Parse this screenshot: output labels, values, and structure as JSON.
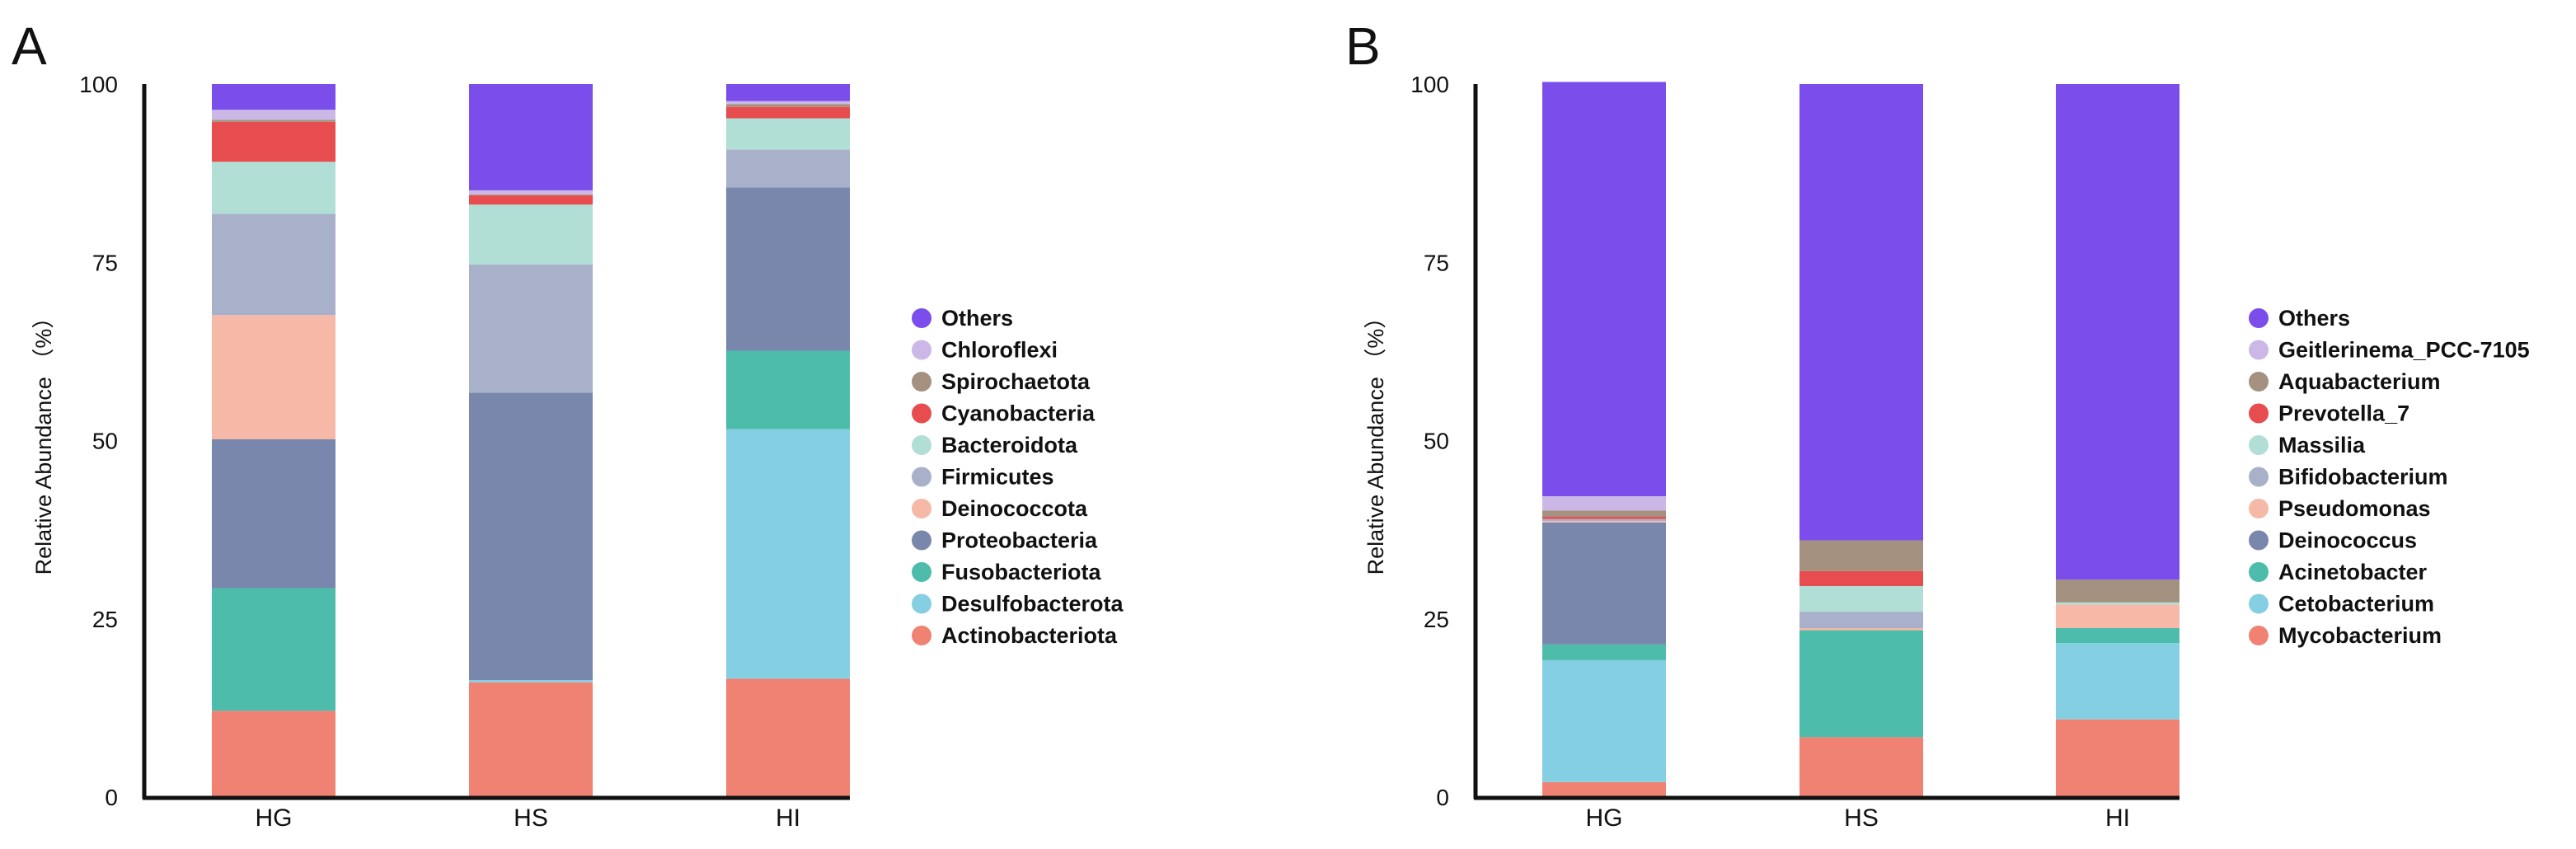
{
  "chart_data": [
    {
      "type": "bar",
      "stacked": true,
      "panel_label": "A",
      "ylabel": "Relative Abundance （%）",
      "xlabel": "",
      "ylim": [
        0,
        100
      ],
      "yticks": [
        "0",
        "25",
        "50",
        "75",
        "100"
      ],
      "categories": [
        "HG",
        "HS",
        "HI"
      ],
      "legend_position": "right",
      "series": [
        {
          "name": "Actinobacteriota",
          "color": "#ef8272",
          "values": [
            12.1,
            16.1,
            16.6
          ]
        },
        {
          "name": "Desulfobacterota",
          "color": "#85cfe3",
          "values": [
            0.0,
            0.3,
            35.0
          ]
        },
        {
          "name": "Fusobacteriota",
          "color": "#4dbcab",
          "values": [
            17.2,
            0.0,
            11.0
          ]
        },
        {
          "name": "Proteobacteria",
          "color": "#7887ab",
          "values": [
            20.9,
            40.3,
            22.9
          ]
        },
        {
          "name": "Deinococcota",
          "color": "#f6b8a7",
          "values": [
            17.4,
            0.0,
            0.0
          ]
        },
        {
          "name": "Firmicutes",
          "color": "#a8b1c9",
          "values": [
            14.2,
            18.0,
            5.3
          ]
        },
        {
          "name": "Bacteroidota",
          "color": "#b2dfd5",
          "values": [
            7.3,
            8.4,
            4.4
          ]
        },
        {
          "name": "Cyanobacteria",
          "color": "#e74c4e",
          "values": [
            5.6,
            1.3,
            1.6
          ]
        },
        {
          "name": "Spirochaetota",
          "color": "#a4917f",
          "values": [
            0.3,
            0.1,
            0.4
          ]
        },
        {
          "name": "Chloroflexi",
          "color": "#cbb8e6",
          "values": [
            1.4,
            0.6,
            0.4
          ]
        },
        {
          "name": "Others",
          "color": "#7b4dea",
          "values": [
            3.6,
            14.9,
            2.4
          ]
        }
      ]
    },
    {
      "type": "bar",
      "stacked": true,
      "panel_label": "B",
      "ylabel": "Relative Abundance （%）",
      "xlabel": "",
      "ylim": [
        0,
        100
      ],
      "yticks": [
        "0",
        "25",
        "50",
        "75",
        "100"
      ],
      "categories": [
        "HG",
        "HS",
        "HI"
      ],
      "legend_position": "right",
      "series": [
        {
          "name": "Mycobacterium",
          "color": "#ef8272",
          "values": [
            2.1,
            8.4,
            10.9
          ]
        },
        {
          "name": "Cetobacterium",
          "color": "#85cfe3",
          "values": [
            17.1,
            0.0,
            10.7
          ]
        },
        {
          "name": "Acinetobacter",
          "color": "#4dbcab",
          "values": [
            2.2,
            15.0,
            2.1
          ]
        },
        {
          "name": "Deinococcus",
          "color": "#7887ab",
          "values": [
            17.1,
            0.0,
            0.0
          ]
        },
        {
          "name": "Pseudomonas",
          "color": "#f6b8a7",
          "values": [
            0.2,
            0.3,
            3.3
          ]
        },
        {
          "name": "Bifidobacterium",
          "color": "#a8b1c9",
          "values": [
            0.3,
            2.3,
            0.0
          ]
        },
        {
          "name": "Massilia",
          "color": "#b2dfd5",
          "values": [
            0.0,
            3.6,
            0.3
          ]
        },
        {
          "name": "Prevotella_7",
          "color": "#e74c4e",
          "values": [
            0.3,
            2.1,
            0.0
          ]
        },
        {
          "name": "Aquabacterium",
          "color": "#a4917f",
          "values": [
            0.9,
            4.3,
            3.2
          ]
        },
        {
          "name": "Geitlerinema_PCC-7105",
          "color": "#cbb8e6",
          "values": [
            2.0,
            0.0,
            0.0
          ]
        },
        {
          "name": "Others",
          "color": "#7b4dea",
          "values": [
            58.1,
            64.0,
            69.5
          ]
        }
      ]
    }
  ]
}
